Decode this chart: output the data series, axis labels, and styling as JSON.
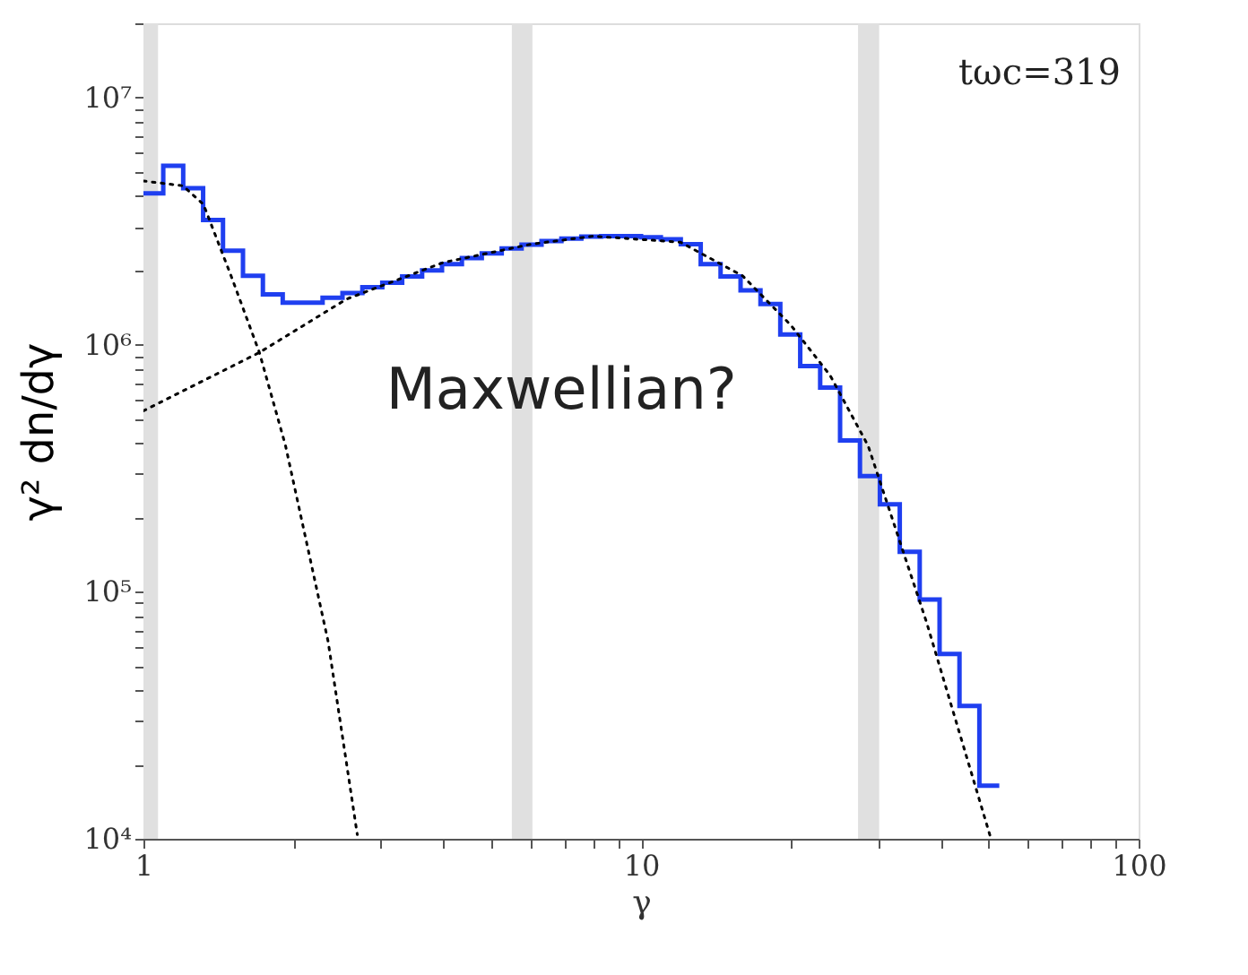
{
  "chart_data": {
    "type": "histogram",
    "xlabel": "γ",
    "ylabel": "γ² dn/dγ",
    "bins": [
      1,
      1.096,
      1.202,
      1.318,
      1.445,
      1.585,
      1.738,
      1.905,
      2.089,
      2.291,
      2.512,
      2.754,
      3.02,
      3.311,
      3.631,
      3.981,
      4.365,
      4.786,
      5.248,
      5.754,
      6.31,
      6.918,
      7.586,
      8.318,
      9.12,
      10.0,
      10.96,
      12.02,
      13.18,
      14.45,
      15.85,
      17.38,
      19.05,
      20.89,
      22.91,
      25.12,
      27.54,
      30.2,
      33.11,
      36.31,
      39.81,
      43.65,
      47.86,
      52.48
    ],
    "values": [
      4100000,
      5300000,
      4300000,
      3200000,
      2400000,
      1900000,
      1600000,
      1480000,
      1480000,
      1550000,
      1620000,
      1710000,
      1780000,
      1890000,
      2000000,
      2120000,
      2240000,
      2340000,
      2450000,
      2540000,
      2630000,
      2690000,
      2740000,
      2750000,
      2750000,
      2720000,
      2670000,
      2550000,
      2120000,
      1890000,
      1660000,
      1460000,
      1100000,
      820000,
      670000,
      410000,
      294000,
      226000,
      145000,
      93000,
      56000,
      34500,
      16400
    ],
    "color": "#1f3ff0",
    "series": [
      {
        "type": "line",
        "line_style": "dotted",
        "color": "#000000",
        "x": [
          1,
          1.2,
          1.32,
          1.5,
          1.71,
          1.93,
          2.35,
          2.69
        ],
        "values": [
          4600000,
          4400000,
          3700000,
          1900000,
          930000,
          390000,
          63000,
          10400
        ]
      },
      {
        "type": "line",
        "line_style": "dotted",
        "color": "#000000",
        "x": [
          1,
          1.71,
          2.56,
          4,
          6,
          8,
          12,
          16,
          20,
          24,
          28.6,
          37.5,
          50.5
        ],
        "values": [
          540000,
          930000,
          1530000,
          2150000,
          2550000,
          2750000,
          2600000,
          1900000,
          1200000,
          750000,
          390000,
          75000,
          10000
        ]
      }
    ],
    "bands": [
      {
        "axis": "x",
        "from": 1,
        "to": 1.07,
        "color": "#e0e0e0"
      },
      {
        "axis": "x",
        "from": 5.5,
        "to": 6.05,
        "color": "#e0e0e0"
      },
      {
        "axis": "x",
        "from": 27.3,
        "to": 30.1,
        "color": "#e0e0e0"
      }
    ],
    "annotations": [
      "tωc=319",
      "Maxwellian?"
    ],
    "log": "xy",
    "grid": false,
    "xlim": [
      1,
      100
    ],
    "ylim": [
      10000,
      20000000
    ],
    "xticks": [
      1,
      {
        "value": 2,
        "label": null
      },
      {
        "value": 3,
        "label": null
      },
      {
        "value": 4,
        "label": null
      },
      {
        "value": 5,
        "label": null
      },
      {
        "value": 6,
        "label": null
      },
      {
        "value": 7,
        "label": null
      },
      {
        "value": 8,
        "label": null
      },
      {
        "value": 9,
        "label": null
      },
      10,
      {
        "value": 20,
        "label": null
      },
      {
        "value": 30,
        "label": null
      },
      {
        "value": 40,
        "label": null
      },
      {
        "value": 50,
        "label": null
      },
      {
        "value": 60,
        "label": null
      },
      {
        "value": 70,
        "label": null
      },
      {
        "value": 80,
        "label": null
      },
      {
        "value": 90,
        "label": null
      },
      100
    ],
    "yticks": [
      {
        "value": 10000,
        "label": "10⁴"
      },
      {
        "value": 20000,
        "label": null
      },
      {
        "value": 30000,
        "label": null
      },
      {
        "value": 40000,
        "label": null
      },
      {
        "value": 50000,
        "label": null
      },
      {
        "value": 60000,
        "label": null
      },
      {
        "value": 70000,
        "label": null
      },
      {
        "value": 80000,
        "label": null
      },
      {
        "value": 90000,
        "label": null
      },
      {
        "value": 100000,
        "label": "10⁵"
      },
      {
        "value": 200000,
        "label": null
      },
      {
        "value": 300000,
        "label": null
      },
      {
        "value": 400000,
        "label": null
      },
      {
        "value": 500000,
        "label": null
      },
      {
        "value": 600000,
        "label": null
      },
      {
        "value": 700000,
        "label": null
      },
      {
        "value": 800000,
        "label": null
      },
      {
        "value": 900000,
        "label": null
      },
      {
        "value": 1000000,
        "label": "10⁶"
      },
      {
        "value": 2000000,
        "label": null
      },
      {
        "value": 3000000,
        "label": null
      },
      {
        "value": 4000000,
        "label": null
      },
      {
        "value": 5000000,
        "label": null
      },
      {
        "value": 6000000,
        "label": null
      },
      {
        "value": 7000000,
        "label": null
      },
      {
        "value": 8000000,
        "label": null
      },
      {
        "value": 9000000,
        "label": null
      },
      {
        "value": 10000000,
        "label": "10⁷"
      },
      {
        "value": 20000000,
        "label": null
      }
    ]
  }
}
